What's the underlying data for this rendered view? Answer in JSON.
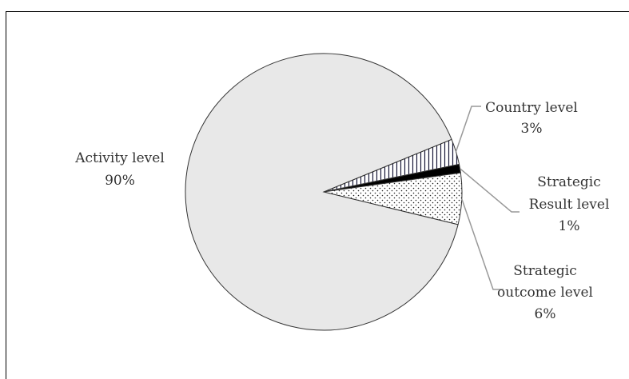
{
  "chart_data": {
    "type": "pie",
    "title": "",
    "slices": [
      {
        "name": "Activity level",
        "value": 90,
        "label": "90%",
        "fill": "#e8e8e8",
        "pattern": "none"
      },
      {
        "name": "Country level",
        "value": 3,
        "label": "3%",
        "fill": "#ffffff",
        "pattern": "vertical-lines"
      },
      {
        "name": "Strategic Result level",
        "value": 1,
        "label": "1%",
        "fill": "#000000",
        "pattern": "solid"
      },
      {
        "name": "Strategic outcome level",
        "value": 6,
        "label": "6%",
        "fill": "#ffffff",
        "pattern": "dots"
      }
    ],
    "labels": {
      "activity": [
        "Activity level",
        "90%"
      ],
      "country": [
        "Country level",
        "3%"
      ],
      "result": [
        "Strategic",
        "Result level",
        "1%"
      ],
      "outcome": [
        "Strategic",
        "outcome level",
        "6%"
      ]
    },
    "legend": "none",
    "colors": {
      "border": "#333333",
      "leader": "#999999"
    }
  }
}
